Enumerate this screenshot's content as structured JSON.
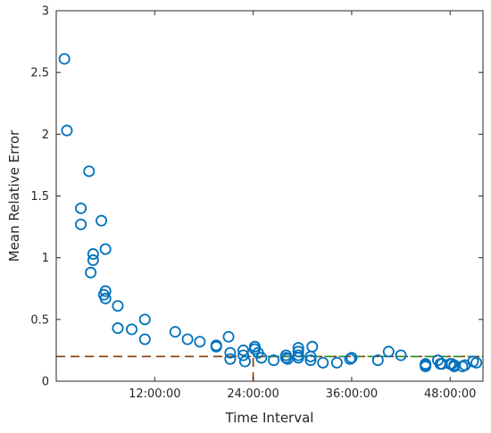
{
  "chart_data": {
    "type": "scatter",
    "title": "",
    "xlabel": "Time Interval",
    "ylabel": "Mean Relative Error",
    "xlim": [
      0,
      52
    ],
    "ylim": [
      0,
      3
    ],
    "x_unit": "hours",
    "x_ticks": [
      {
        "value": 12,
        "label": "12:00:00"
      },
      {
        "value": 24,
        "label": "24:00:00"
      },
      {
        "value": 36,
        "label": "36:00:00"
      },
      {
        "value": 48,
        "label": "48:00:00"
      }
    ],
    "y_ticks": [
      {
        "value": 0,
        "label": "0"
      },
      {
        "value": 0.5,
        "label": "0.5"
      },
      {
        "value": 1,
        "label": "1"
      },
      {
        "value": 1.5,
        "label": "1.5"
      },
      {
        "value": 2,
        "label": "2"
      },
      {
        "value": 2.5,
        "label": "2.5"
      },
      {
        "value": 3,
        "label": "3"
      }
    ],
    "grid": false,
    "series": [
      {
        "marker": "circle-open",
        "color": "#0072BD",
        "points": [
          [
            1.0,
            2.61
          ],
          [
            1.3,
            2.03
          ],
          [
            3.0,
            1.4
          ],
          [
            3.0,
            1.27
          ],
          [
            4.0,
            1.7
          ],
          [
            4.5,
            1.03
          ],
          [
            4.5,
            0.98
          ],
          [
            4.2,
            0.88
          ],
          [
            5.5,
            1.3
          ],
          [
            6.0,
            1.07
          ],
          [
            5.8,
            0.7
          ],
          [
            6.0,
            0.73
          ],
          [
            6.0,
            0.67
          ],
          [
            7.5,
            0.61
          ],
          [
            7.5,
            0.43
          ],
          [
            9.2,
            0.42
          ],
          [
            10.8,
            0.5
          ],
          [
            10.8,
            0.34
          ],
          [
            14.5,
            0.4
          ],
          [
            16.0,
            0.34
          ],
          [
            17.5,
            0.32
          ],
          [
            19.5,
            0.29
          ],
          [
            19.5,
            0.28
          ],
          [
            21.0,
            0.36
          ],
          [
            21.2,
            0.23
          ],
          [
            21.2,
            0.18
          ],
          [
            22.8,
            0.25
          ],
          [
            22.8,
            0.21
          ],
          [
            23.0,
            0.16
          ],
          [
            24.2,
            0.28
          ],
          [
            24.2,
            0.26
          ],
          [
            24.6,
            0.23
          ],
          [
            25.0,
            0.19
          ],
          [
            26.5,
            0.17
          ],
          [
            28.0,
            0.21
          ],
          [
            28.0,
            0.19
          ],
          [
            28.2,
            0.18
          ],
          [
            29.5,
            0.27
          ],
          [
            29.5,
            0.24
          ],
          [
            29.5,
            0.21
          ],
          [
            29.5,
            0.19
          ],
          [
            31.0,
            0.2
          ],
          [
            31.0,
            0.17
          ],
          [
            31.2,
            0.28
          ],
          [
            32.5,
            0.15
          ],
          [
            34.2,
            0.15
          ],
          [
            35.8,
            0.18
          ],
          [
            36.0,
            0.19
          ],
          [
            39.2,
            0.17
          ],
          [
            40.5,
            0.24
          ],
          [
            42.0,
            0.21
          ],
          [
            45.0,
            0.14
          ],
          [
            45.0,
            0.13
          ],
          [
            45.0,
            0.12
          ],
          [
            46.5,
            0.17
          ],
          [
            46.8,
            0.14
          ],
          [
            47.0,
            0.14
          ],
          [
            48.0,
            0.14
          ],
          [
            48.2,
            0.14
          ],
          [
            48.5,
            0.12
          ],
          [
            48.5,
            0.13
          ],
          [
            49.5,
            0.12
          ],
          [
            49.8,
            0.13
          ],
          [
            50.8,
            0.16
          ],
          [
            51.2,
            0.15
          ]
        ]
      }
    ],
    "reference_lines": [
      {
        "orientation": "horizontal",
        "value": 0.2,
        "style": "dashed",
        "color": "#8B3A00"
      },
      {
        "orientation": "horizontal",
        "value": 0.2,
        "style": "dashed",
        "color": "#2E8B2E",
        "x_from": 24,
        "x_to": 52
      },
      {
        "orientation": "vertical",
        "value": 24,
        "style": "dashed",
        "color": "#8B3A00",
        "y_from": 0,
        "y_to": 0.2
      }
    ]
  }
}
